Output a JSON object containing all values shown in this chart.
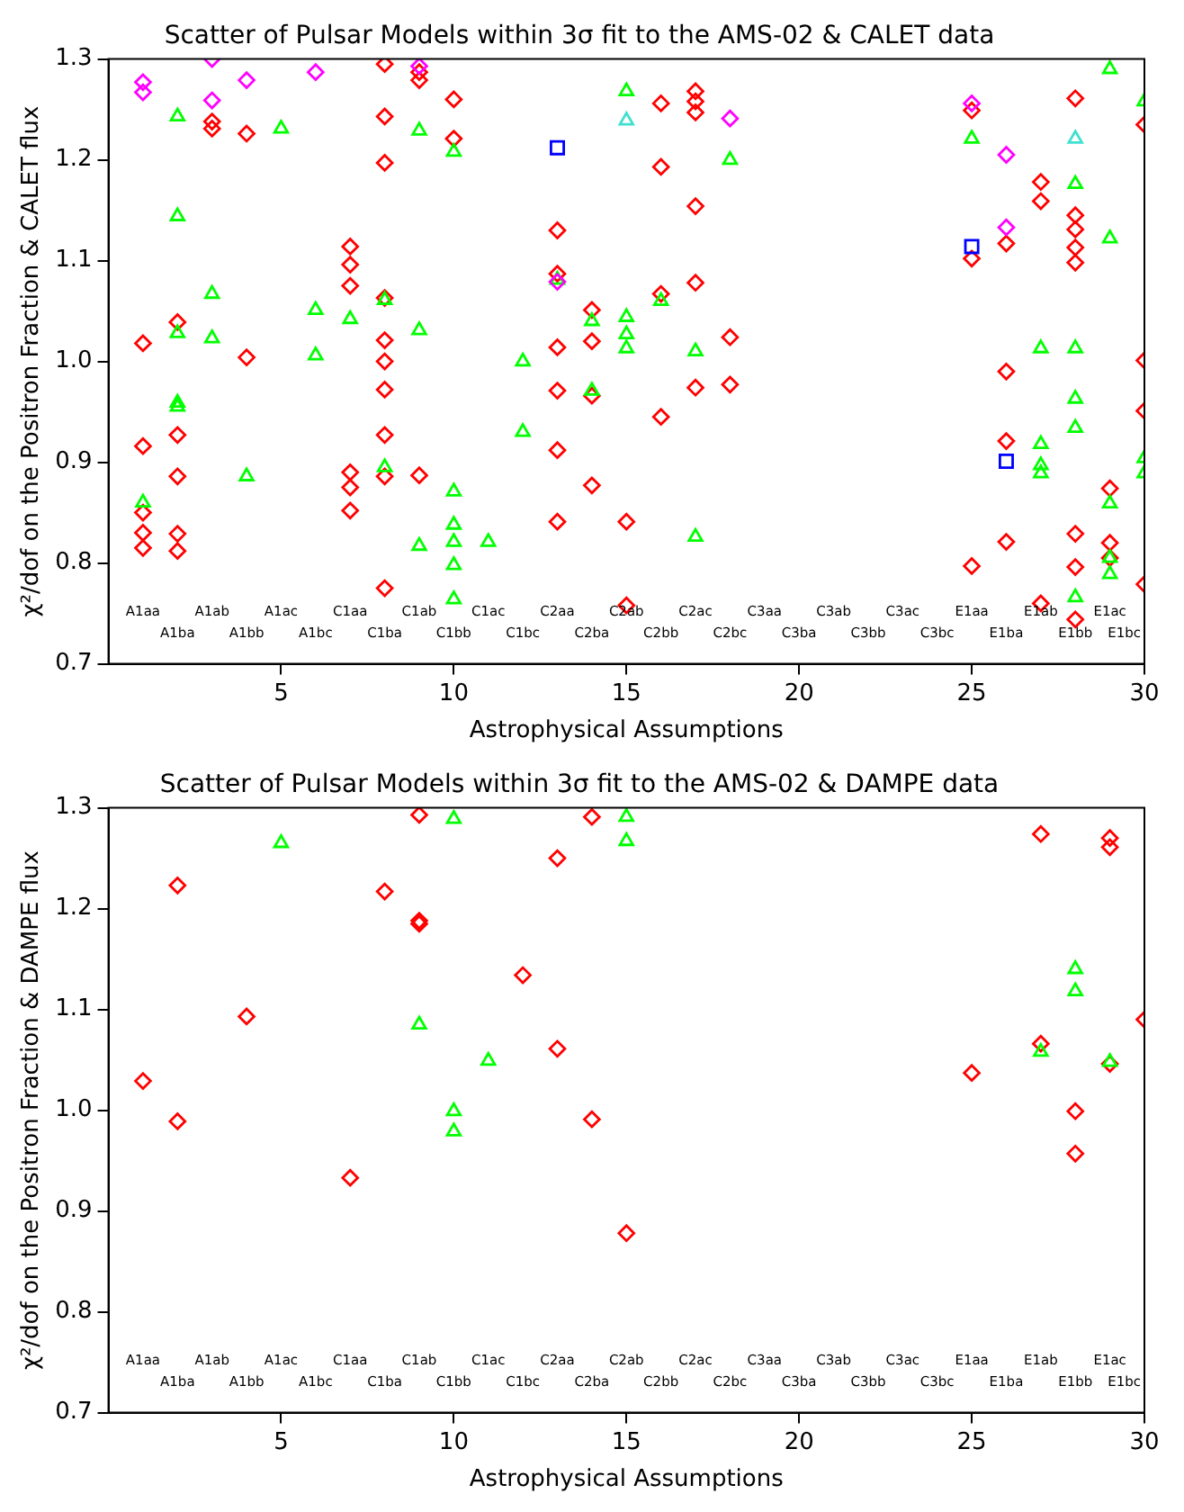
{
  "chart_data": [
    {
      "type": "scatter",
      "title": "Scatter of Pulsar Models within 3σ fit to the AMS-02 & CALET data",
      "xlabel": "Astrophysical Assumptions",
      "ylabel": "χ²/dof on the Positron Fraction & CALET flux",
      "xlim": [
        0,
        30
      ],
      "xticks": [
        5,
        10,
        15,
        20,
        25,
        30
      ],
      "ylim": [
        0.7,
        1.3
      ],
      "yticks": [
        0.7,
        0.8,
        0.9,
        {
          "value": 1,
          "label": "1.0"
        },
        1.1,
        1.2,
        1.3
      ],
      "grid": false,
      "series": [
        {
          "color": "#ff0000",
          "marker": "diamond",
          "x": [
            1,
            1,
            1,
            1,
            1,
            2,
            2,
            2,
            2,
            2,
            3,
            3,
            4,
            4,
            7,
            7,
            7,
            7,
            7,
            7,
            8,
            8,
            8,
            8,
            8,
            8,
            8,
            8,
            8,
            8,
            9,
            9,
            9,
            10,
            10,
            13,
            13,
            13,
            13,
            13,
            13,
            14,
            14,
            14,
            14,
            15,
            15,
            16,
            16,
            16,
            16,
            17,
            17,
            17,
            17,
            17,
            17,
            18,
            18,
            25,
            25,
            25,
            26,
            26,
            26,
            26,
            27,
            27,
            27,
            28,
            28,
            28,
            28,
            28,
            28,
            28,
            28,
            29,
            29,
            29,
            30,
            30,
            30,
            30
          ],
          "values": [
            1.018,
            0.916,
            0.85,
            0.83,
            0.815,
            1.039,
            0.927,
            0.886,
            0.829,
            0.812,
            1.238,
            1.231,
            1.226,
            1.004,
            1.114,
            1.096,
            1.075,
            0.89,
            0.875,
            0.852,
            1.295,
            1.243,
            1.197,
            1.063,
            1.021,
            1.0,
            0.972,
            0.927,
            0.886,
            0.775,
            1.287,
            1.279,
            0.887,
            1.26,
            1.221,
            1.13,
            1.087,
            1.014,
            0.971,
            0.912,
            0.841,
            1.051,
            1.02,
            0.966,
            0.877,
            0.841,
            0.758,
            1.256,
            1.193,
            1.067,
            0.945,
            1.268,
            1.258,
            1.247,
            1.154,
            1.078,
            0.974,
            1.024,
            0.977,
            1.249,
            1.102,
            0.797,
            1.117,
            0.99,
            0.921,
            0.821,
            1.178,
            1.159,
            0.76,
            1.261,
            1.145,
            1.131,
            1.113,
            1.098,
            0.829,
            0.796,
            0.744,
            0.874,
            0.82,
            0.805,
            1.235,
            1.001,
            0.951,
            0.779
          ]
        },
        {
          "color": "#00ff00",
          "marker": "triangle",
          "x": [
            1,
            2,
            2,
            2,
            2,
            2,
            3,
            3,
            4,
            5,
            6,
            6,
            7,
            8,
            8,
            9,
            9,
            9,
            10,
            10,
            10,
            10,
            10,
            10,
            11,
            12,
            12,
            13,
            14,
            14,
            15,
            15,
            15,
            15,
            16,
            17,
            17,
            18,
            25,
            27,
            27,
            27,
            27,
            28,
            28,
            28,
            28,
            28,
            29,
            29,
            29,
            29,
            29,
            30,
            30,
            30
          ],
          "values": [
            0.86,
            1.243,
            1.144,
            1.028,
            0.959,
            0.955,
            1.067,
            1.023,
            0.886,
            1.231,
            1.051,
            1.006,
            1.042,
            1.061,
            0.895,
            1.229,
            1.031,
            0.817,
            1.208,
            0.871,
            0.838,
            0.821,
            0.798,
            0.764,
            0.821,
            1.0,
            0.93,
            1.081,
            1.04,
            0.971,
            1.268,
            1.044,
            1.027,
            1.013,
            1.06,
            1.01,
            0.826,
            1.2,
            1.221,
            1.013,
            0.918,
            0.897,
            0.889,
            1.176,
            1.013,
            0.963,
            0.934,
            0.766,
            1.29,
            1.122,
            0.859,
            0.805,
            0.789,
            1.258,
            0.904,
            0.889
          ]
        },
        {
          "color": "#ff00ff",
          "marker": "diamond",
          "x": [
            1,
            1,
            3,
            3,
            4,
            6,
            9,
            13,
            18,
            25,
            26,
            26
          ],
          "values": [
            1.277,
            1.267,
            1.3,
            1.259,
            1.279,
            1.287,
            1.293,
            1.079,
            1.241,
            1.256,
            1.205,
            1.133
          ]
        },
        {
          "color": "#40e0d0",
          "marker": "triangle",
          "x": [
            15,
            28
          ],
          "values": [
            1.239,
            1.221
          ]
        },
        {
          "color": "#0000ff",
          "marker": "square",
          "x": [
            13,
            25,
            26
          ],
          "values": [
            1.212,
            1.114,
            0.901
          ]
        }
      ],
      "annotations": [
        "A1aa",
        "A1ba",
        "A1ab",
        "A1bb",
        "A1ac",
        "A1bc",
        "C1aa",
        "C1ba",
        "C1ab",
        "C1bb",
        "C1ac",
        "C1bc",
        "C2aa",
        "C2ba",
        "C2ab",
        "C2bb",
        "C2ac",
        "C2bc",
        "C3aa",
        "C3ba",
        "C3ab",
        "C3bb",
        "C3ac",
        "C3bc",
        "E1aa",
        "E1ba",
        "E1ab",
        "E1bb",
        "E1ac",
        "E1bc"
      ]
    },
    {
      "type": "scatter",
      "title": "Scatter of Pulsar Models within 3σ fit to the AMS-02 & DAMPE data",
      "xlabel": "Astrophysical Assumptions",
      "ylabel": "χ²/dof on the Positron Fraction & DAMPE flux",
      "xlim": [
        0,
        30
      ],
      "xticks": [
        5,
        10,
        15,
        20,
        25,
        30
      ],
      "ylim": [
        0.7,
        1.3
      ],
      "yticks": [
        0.7,
        0.8,
        0.9,
        {
          "value": 1,
          "label": "1.0"
        },
        1.1,
        1.2,
        1.3
      ],
      "grid": false,
      "series": [
        {
          "color": "#ff0000",
          "marker": "diamond",
          "x": [
            1,
            2,
            2,
            4,
            7,
            8,
            9,
            9,
            9,
            12,
            13,
            13,
            14,
            14,
            15,
            25,
            27,
            27,
            28,
            28,
            29,
            29,
            29,
            30
          ],
          "values": [
            1.029,
            1.223,
            0.989,
            1.093,
            0.933,
            1.217,
            1.293,
            1.188,
            1.185,
            1.134,
            1.25,
            1.061,
            1.291,
            0.991,
            0.878,
            1.037,
            1.274,
            1.066,
            0.999,
            0.957,
            1.27,
            1.261,
            1.046,
            1.09
          ]
        },
        {
          "color": "#00ff00",
          "marker": "triangle",
          "x": [
            5,
            9,
            10,
            10,
            10,
            11,
            15,
            15,
            27,
            28,
            28,
            29
          ],
          "values": [
            1.265,
            1.085,
            1.289,
            0.999,
            0.979,
            1.049,
            1.291,
            1.267,
            1.058,
            1.14,
            1.118,
            1.048
          ]
        }
      ],
      "annotations": [
        "A1aa",
        "A1ba",
        "A1ab",
        "A1bb",
        "A1ac",
        "A1bc",
        "C1aa",
        "C1ba",
        "C1ab",
        "C1bb",
        "C1ac",
        "C1bc",
        "C2aa",
        "C2ba",
        "C2ab",
        "C2bb",
        "C2ac",
        "C2bc",
        "C3aa",
        "C3ba",
        "C3ab",
        "C3bb",
        "C3ac",
        "C3bc",
        "E1aa",
        "E1ba",
        "E1ab",
        "E1bb",
        "E1ac",
        "E1bc"
      ]
    }
  ]
}
